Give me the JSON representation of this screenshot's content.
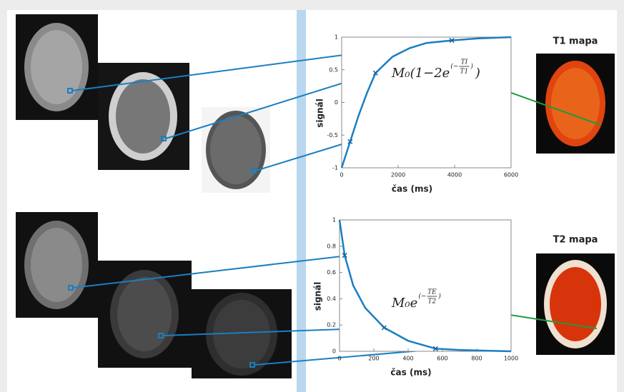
{
  "chart_data": [
    {
      "type": "line",
      "ylabel": "signál",
      "xlabel": "čas (ms)",
      "map_label": "T1 mapa",
      "formula": {
        "text": "M₀(1−2e",
        "exp_open": "(−",
        "num": "TI",
        "den": "T1",
        "exp_close": ")",
        "close": ")"
      },
      "color": "#1a7fc1",
      "x": [
        0,
        300,
        600,
        900,
        1200,
        1800,
        2400,
        3000,
        3900,
        4800,
        6000
      ],
      "values": [
        -1,
        -0.6,
        -0.2,
        0.15,
        0.45,
        0.7,
        0.83,
        0.91,
        0.95,
        0.98,
        1
      ],
      "marker_x": [
        300,
        1200,
        3900
      ],
      "marker_values": [
        -0.6,
        0.45,
        0.95
      ],
      "xlim": [
        0,
        6000
      ],
      "xticks": [
        0,
        2000,
        4000,
        6000
      ],
      "ylim": [
        -1,
        1
      ],
      "yticks": [
        -1,
        -0.5,
        0,
        0.5,
        1
      ]
    },
    {
      "type": "line",
      "ylabel": "signál",
      "xlabel": "čas (ms)",
      "map_label": "T2 mapa",
      "formula": {
        "text": "M₀e",
        "exp_open": "(−",
        "num": "TE",
        "den": "T2",
        "exp_close": ")"
      },
      "color": "#1a7fc1",
      "x": [
        0,
        30,
        80,
        150,
        260,
        400,
        560,
        700,
        850,
        1000
      ],
      "values": [
        1,
        0.73,
        0.5,
        0.33,
        0.18,
        0.08,
        0.02,
        0.01,
        0.005,
        0
      ],
      "marker_x": [
        30,
        260,
        560
      ],
      "marker_values": [
        0.73,
        0.18,
        0.02
      ],
      "xlim": [
        0,
        1000
      ],
      "xticks": [
        0,
        200,
        400,
        600,
        800,
        1000
      ],
      "ylim": [
        0,
        1
      ],
      "yticks": [
        0,
        0.2,
        0.4,
        0.6,
        0.8,
        1
      ]
    }
  ]
}
